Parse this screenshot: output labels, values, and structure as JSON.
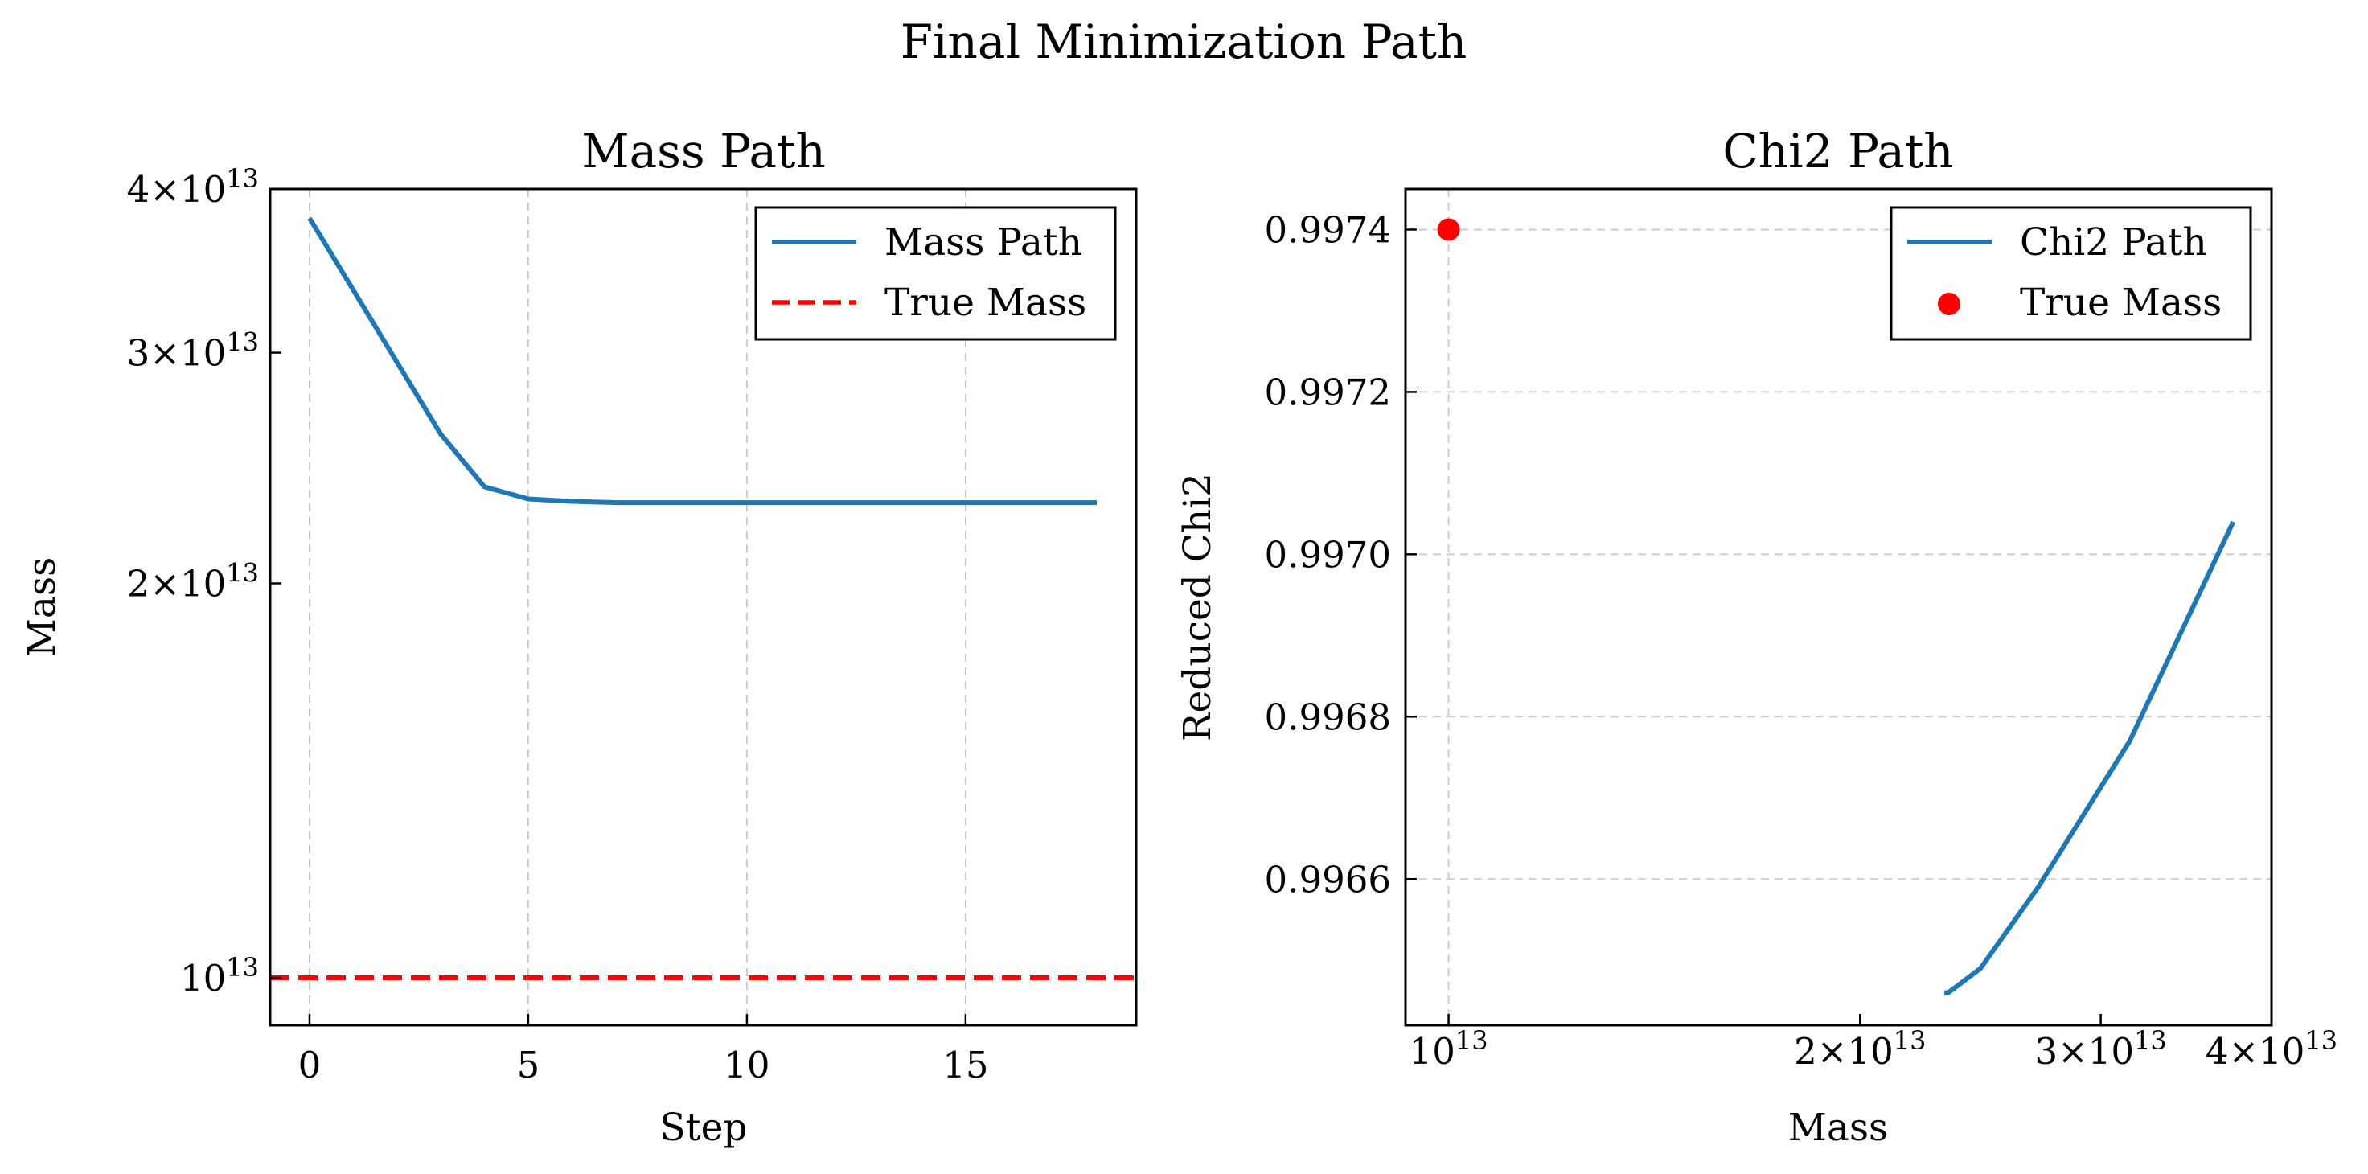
{
  "figure": {
    "suptitle": "Final Minimization Path"
  },
  "chart_data": [
    {
      "type": "line",
      "title": "Mass Path",
      "xlabel": "Step",
      "ylabel": "Mass",
      "xlim": [
        -0.9,
        18.9
      ],
      "ylim": [
        9200000000000.0,
        40000000000000.0
      ],
      "yscale": "log",
      "grid": "x-dashed",
      "legend_loc": "upper right",
      "x_ticks": [
        0,
        5,
        10,
        15
      ],
      "y_ticks": [
        {
          "value": 10000000000000.0,
          "mantissa": "",
          "base": "10",
          "exp": "13"
        },
        {
          "value": 20000000000000.0,
          "mantissa": "2",
          "base": "10",
          "exp": "13"
        },
        {
          "value": 30000000000000.0,
          "mantissa": "3",
          "base": "10",
          "exp": "13"
        },
        {
          "value": 40000000000000.0,
          "mantissa": "4",
          "base": "10",
          "exp": "13"
        }
      ],
      "series": [
        {
          "name": "Mass Path",
          "style": "solid",
          "color": "#1f77b4",
          "x": [
            0,
            1,
            2,
            3,
            4,
            5,
            6,
            7,
            8,
            9,
            10,
            11,
            12,
            13,
            14,
            15,
            16,
            17,
            18
          ],
          "y": [
            38000000000000.0,
            33500000000000.0,
            29500000000000.0,
            26000000000000.0,
            23700000000000.0,
            23200000000000.0,
            23100000000000.0,
            23050000000000.0,
            23050000000000.0,
            23050000000000.0,
            23050000000000.0,
            23050000000000.0,
            23050000000000.0,
            23050000000000.0,
            23050000000000.0,
            23050000000000.0,
            23050000000000.0,
            23050000000000.0,
            23050000000000.0
          ]
        },
        {
          "name": "True Mass",
          "style": "dashed",
          "color": "#ff0000",
          "hline": 10000000000000.0
        }
      ]
    },
    {
      "type": "line",
      "title": "Chi2 Path",
      "xlabel": "Mass",
      "ylabel": "Reduced Chi2",
      "xlim": [
        9300000000000.0,
        40000000000000.0
      ],
      "xscale": "log",
      "ylim": [
        0.99642,
        0.99745
      ],
      "grid": "both-dashed",
      "legend_loc": "upper right",
      "x_ticks": [
        {
          "value": 10000000000000.0,
          "mantissa": "",
          "base": "10",
          "exp": "13"
        },
        {
          "value": 20000000000000.0,
          "mantissa": "2",
          "base": "10",
          "exp": "13"
        },
        {
          "value": 30000000000000.0,
          "mantissa": "3",
          "base": "10",
          "exp": "13"
        },
        {
          "value": 40000000000000.0,
          "mantissa": "4",
          "base": "10",
          "exp": "13"
        }
      ],
      "y_ticks": [
        "0.9966",
        "0.9968",
        "0.9970",
        "0.9972",
        "0.9974"
      ],
      "series": [
        {
          "name": "Chi2 Path",
          "style": "solid",
          "color": "#1f77b4",
          "x": [
            23050000000000.0,
            23200000000000.0,
            24500000000000.0,
            27000000000000.0,
            31500000000000.0,
            37500000000000.0
          ],
          "y": [
            0.99646,
            0.99646,
            0.99649,
            0.99659,
            0.99677,
            0.99704
          ]
        },
        {
          "name": "True Mass",
          "style": "marker",
          "color": "#ff0000",
          "x": [
            10000000000000.0
          ],
          "y": [
            0.9974
          ]
        }
      ]
    }
  ]
}
